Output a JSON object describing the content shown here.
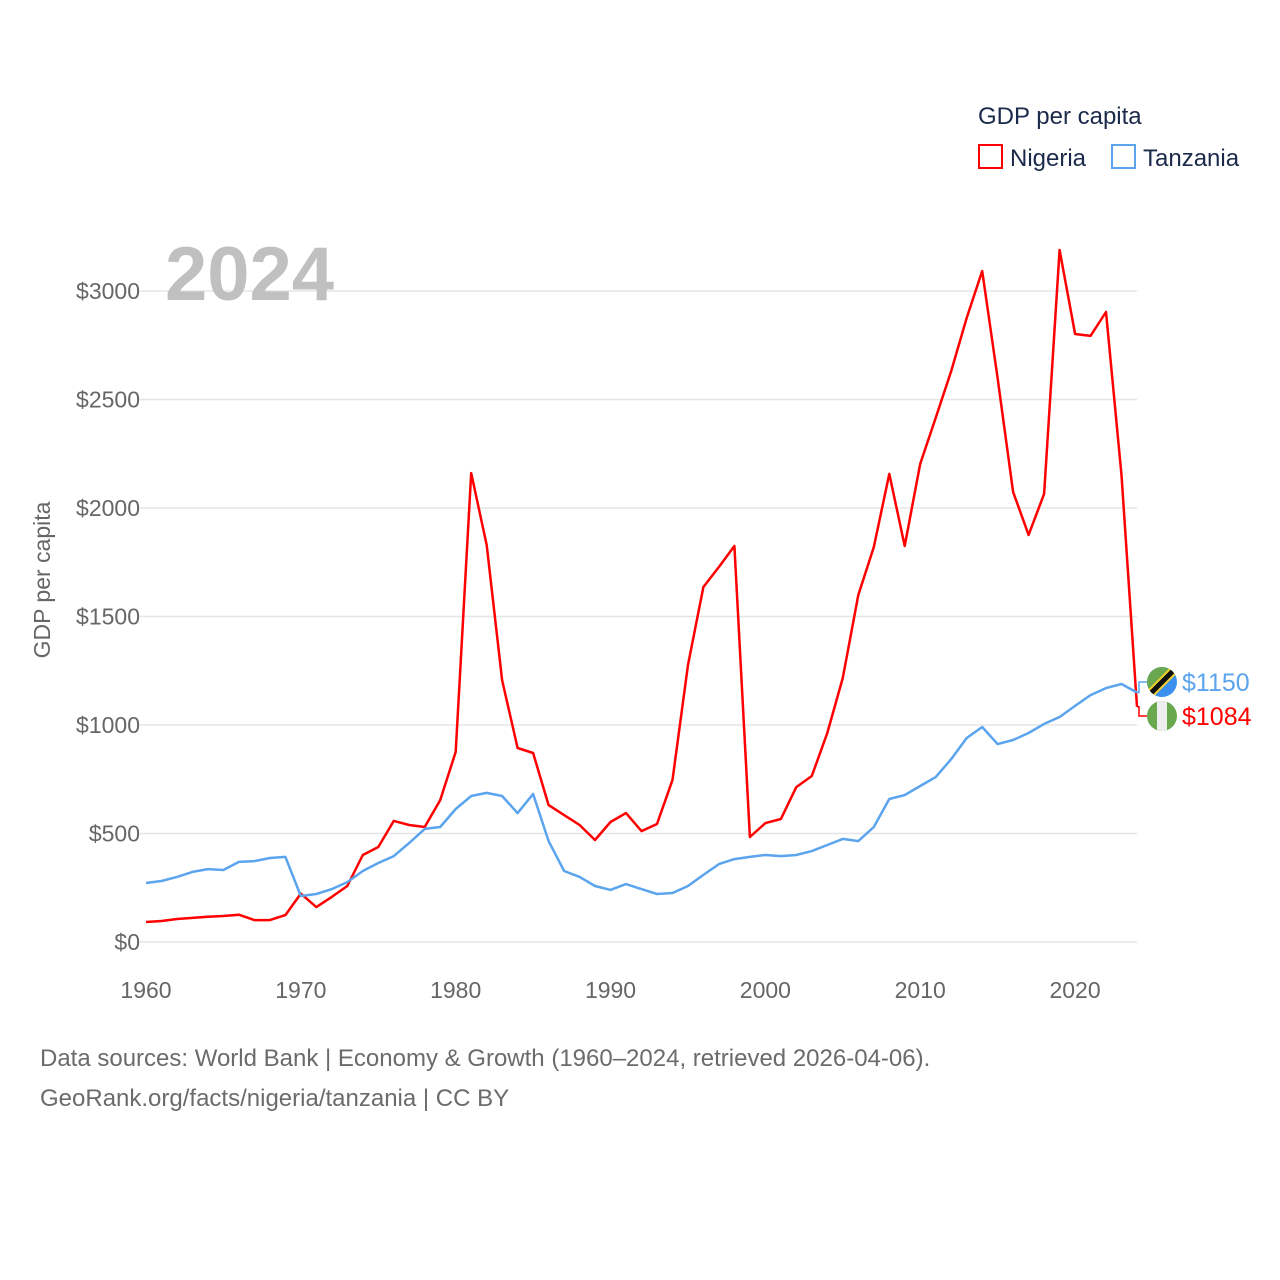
{
  "chart_data": {
    "type": "line",
    "title": "",
    "legend_title": "GDP per capita",
    "legend_placement": "top-right",
    "year_label": "2024",
    "xlabel": "",
    "ylabel": "GDP per capita",
    "xlim": [
      1960,
      2024
    ],
    "ylim": [
      0,
      3000
    ],
    "x_ticks": [
      "1960",
      "1970",
      "1980",
      "1990",
      "2000",
      "2010",
      "2020"
    ],
    "y_ticks": [
      "$0",
      "$500",
      "$1000",
      "$1500",
      "$2000",
      "$2500",
      "$3000"
    ],
    "y_tick_values": [
      0,
      500,
      1000,
      1500,
      2000,
      2500,
      3000
    ],
    "x_start": 1960,
    "series": [
      {
        "name": "Nigeria",
        "color": "#ff0000",
        "end_label": "$1084",
        "flag": "nigeria-flag",
        "values": [
          92,
          97,
          106,
          111,
          116,
          120,
          126,
          101,
          101,
          124,
          223,
          161,
          208,
          258,
          401,
          438,
          558,
          539,
          530,
          654,
          876,
          2161,
          1829,
          1207,
          894,
          871,
          631,
          585,
          539,
          470,
          553,
          594,
          511,
          544,
          747,
          1277,
          1636,
          1728,
          1825,
          484,
          548,
          567,
          714,
          765,
          963,
          1217,
          1599,
          1820,
          2157,
          1825,
          2203,
          2415,
          2631,
          2876,
          3092,
          2599,
          2074,
          1876,
          2065,
          3189,
          2802,
          2793,
          2903,
          2152,
          1084
        ]
      },
      {
        "name": "Tanzania",
        "color": "#5ba4ee",
        "end_label": "$1150",
        "flag": "tanzania-flag",
        "values": [
          272,
          281,
          300,
          323,
          336,
          332,
          369,
          373,
          387,
          392,
          212,
          221,
          244,
          276,
          327,
          364,
          396,
          456,
          521,
          530,
          613,
          673,
          687,
          673,
          594,
          682,
          465,
          327,
          300,
          258,
          240,
          267,
          244,
          221,
          226,
          258,
          309,
          359,
          382,
          392,
          401,
          396,
          401,
          419,
          447,
          475,
          465,
          530,
          659,
          677,
          719,
          760,
          843,
          940,
          991,
          912,
          931,
          963,
          1005,
          1037,
          1088,
          1138,
          1170,
          1189,
          1150
        ]
      }
    ]
  },
  "footer": {
    "line1": "Data sources: World Bank | Economy & Growth (1960–2024, retrieved 2026-04-06).",
    "line2": "GeoRank.org/facts/nigeria/tanzania | CC BY"
  }
}
